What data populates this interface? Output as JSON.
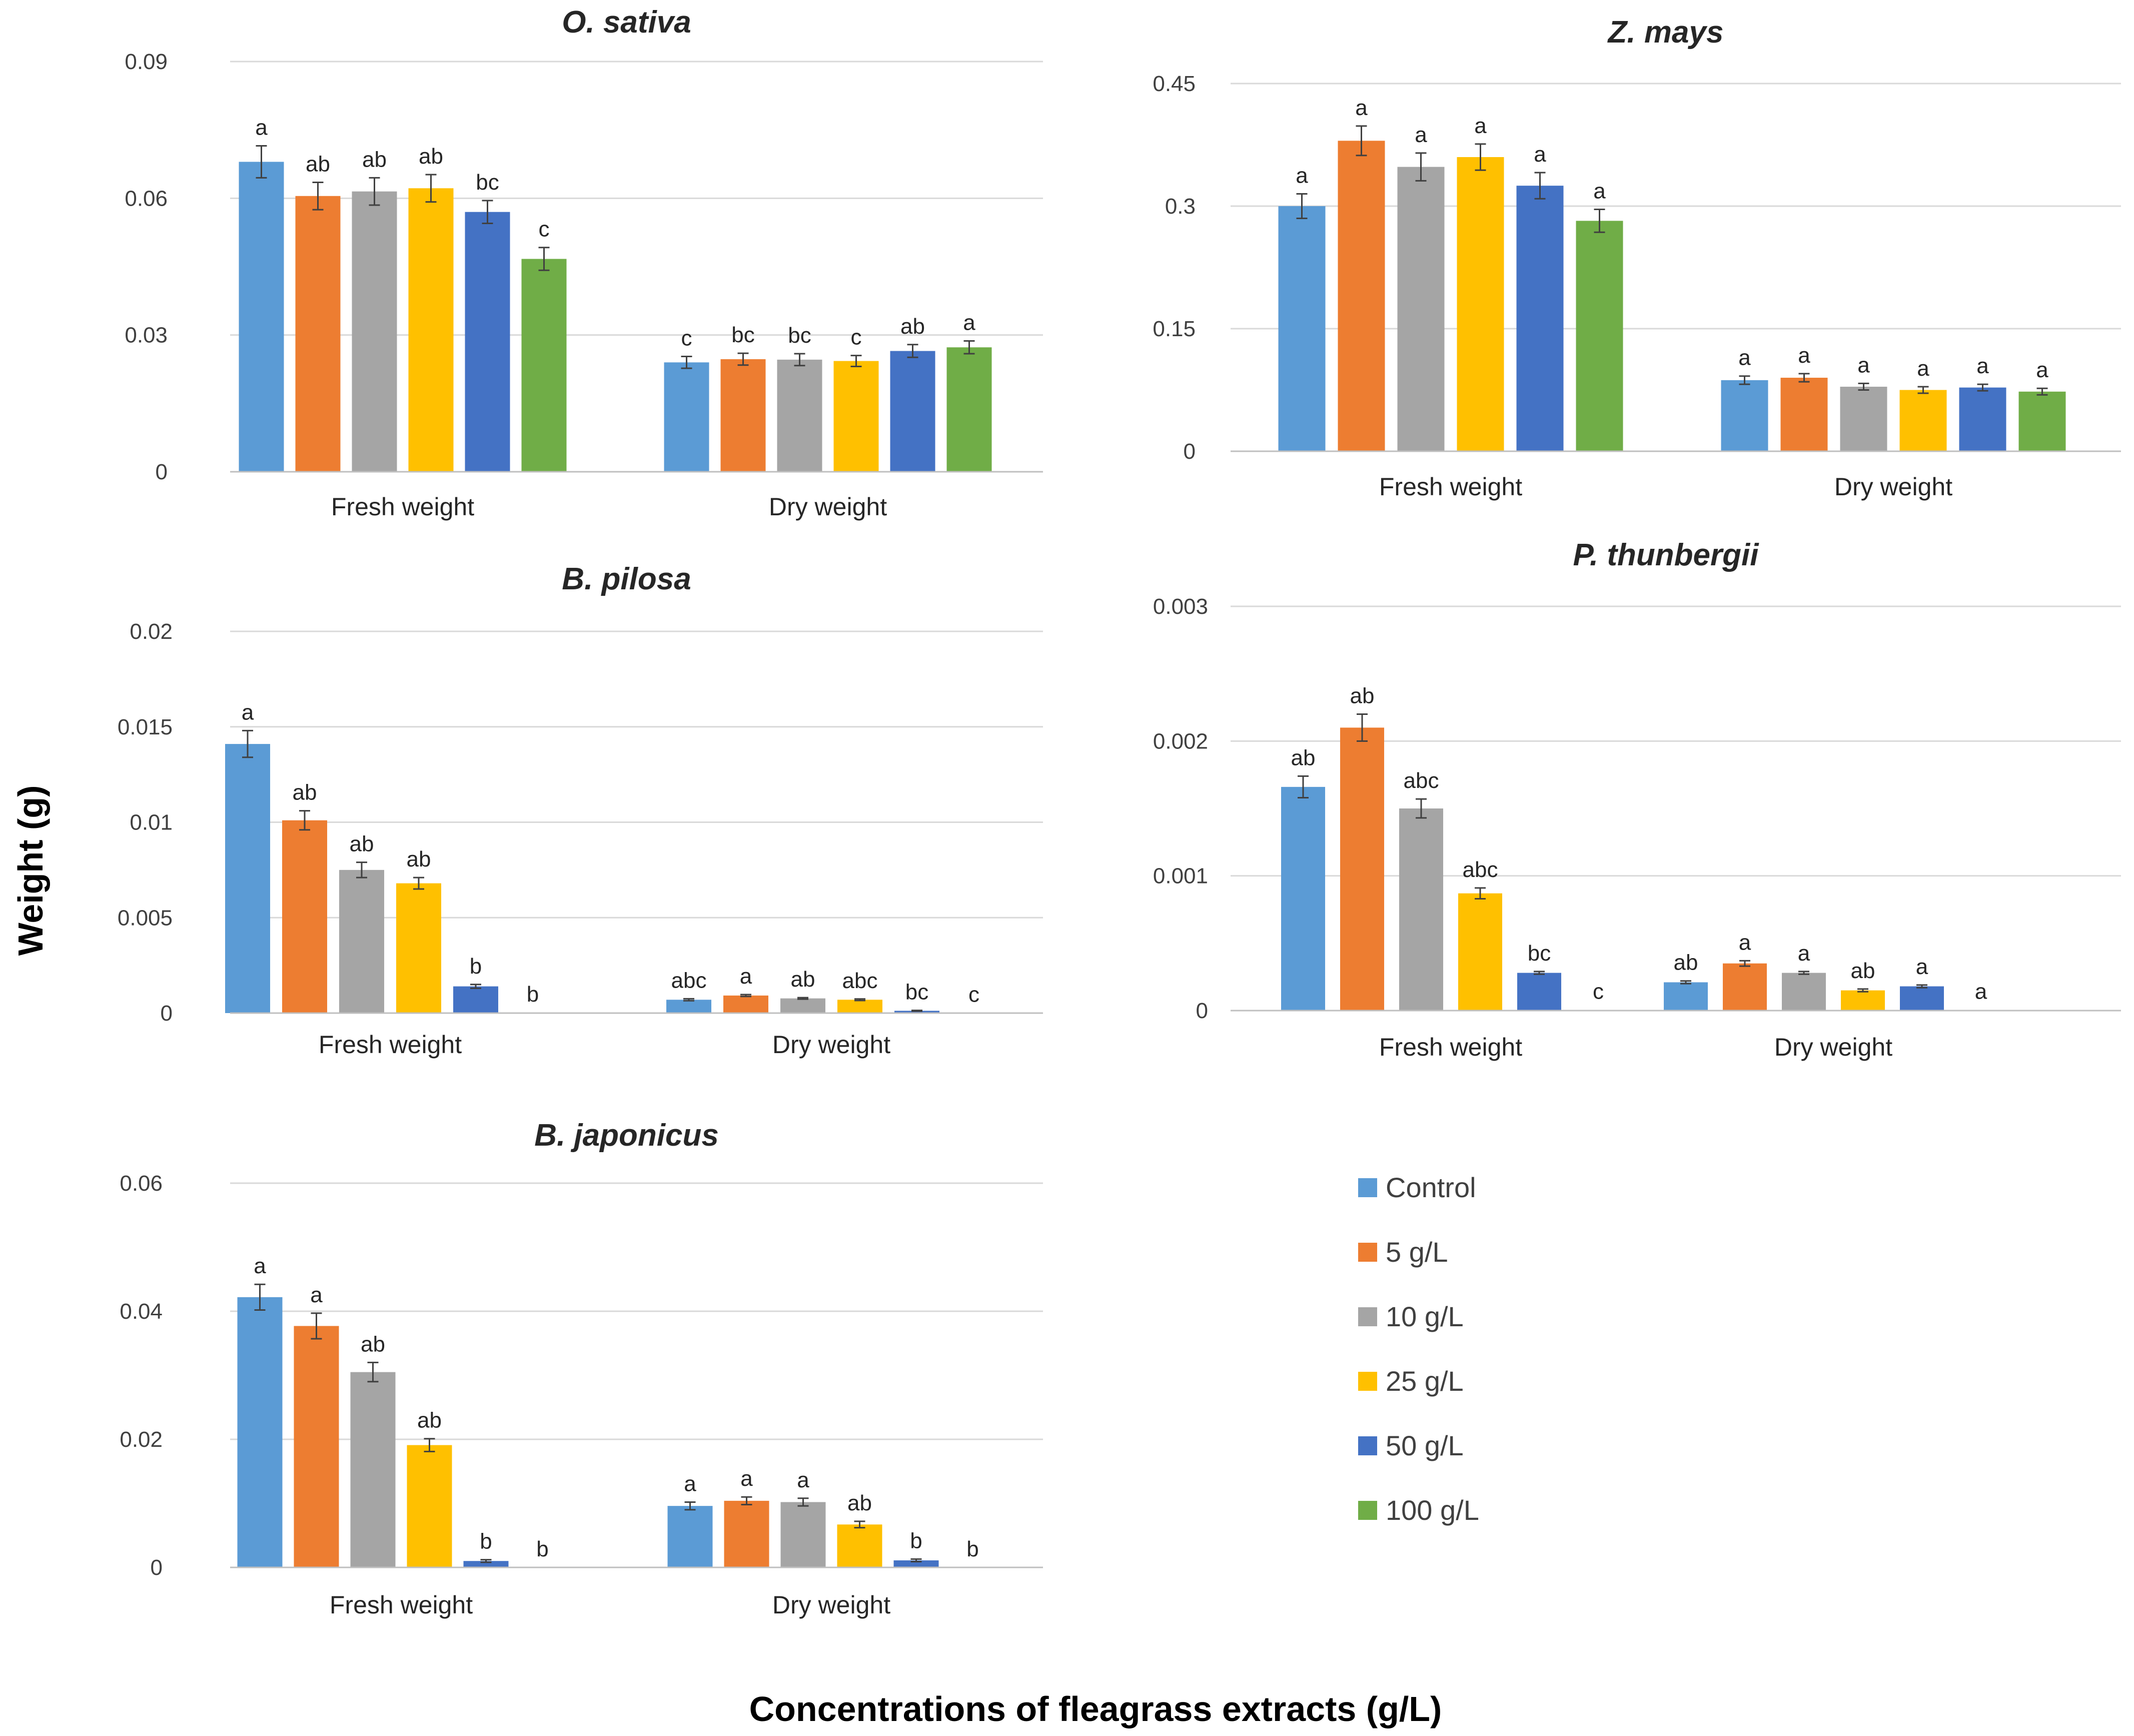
{
  "figure": {
    "ylabel": "Weight (g)",
    "xlabel": "Concentrations of fleagrass extracts (g/L)"
  },
  "legend": [
    {
      "label": "Control",
      "color": "#5B9BD5"
    },
    {
      "label": "5 g/L",
      "color": "#ED7D31"
    },
    {
      "label": "10 g/L",
      "color": "#A5A5A5"
    },
    {
      "label": "25 g/L",
      "color": "#FFC000"
    },
    {
      "label": "50 g/L",
      "color": "#4472C4"
    },
    {
      "label": "100 g/L",
      "color": "#70AD47"
    }
  ],
  "chart_data": [
    {
      "type": "bar",
      "title": "O. sativa",
      "categories": [
        "Fresh weight",
        "Dry weight"
      ],
      "ylim": [
        0,
        0.09
      ],
      "yticks": [
        "0",
        "0.03",
        "0.06",
        "0.09"
      ],
      "series": [
        {
          "name": "Control",
          "values": [
            0.068,
            0.024
          ],
          "errors": [
            0.0035,
            0.0013
          ],
          "letters": [
            "a",
            "c"
          ]
        },
        {
          "name": "5 g/L",
          "values": [
            0.0605,
            0.0247
          ],
          "errors": [
            0.003,
            0.0013
          ],
          "letters": [
            "ab",
            "bc"
          ]
        },
        {
          "name": "10 g/L",
          "values": [
            0.0615,
            0.0246
          ],
          "errors": [
            0.003,
            0.0013
          ],
          "letters": [
            "ab",
            "bc"
          ]
        },
        {
          "name": "25 g/L",
          "values": [
            0.0622,
            0.0243
          ],
          "errors": [
            0.003,
            0.0012
          ],
          "letters": [
            "ab",
            "c"
          ]
        },
        {
          "name": "50 g/L",
          "values": [
            0.057,
            0.0265
          ],
          "errors": [
            0.0025,
            0.0014
          ],
          "letters": [
            "bc",
            "ab"
          ]
        },
        {
          "name": "100 g/L",
          "values": [
            0.0467,
            0.0273
          ],
          "errors": [
            0.0025,
            0.0014
          ],
          "letters": [
            "c",
            "a"
          ]
        }
      ]
    },
    {
      "type": "bar",
      "title": "Z. mays",
      "categories": [
        "Fresh weight",
        "Dry weight"
      ],
      "ylim": [
        0,
        0.45
      ],
      "yticks": [
        "0",
        "0.15",
        "0.3",
        "0.45"
      ],
      "series": [
        {
          "name": "Control",
          "values": [
            0.3,
            0.087
          ],
          "errors": [
            0.015,
            0.005
          ],
          "letters": [
            "a",
            "a"
          ]
        },
        {
          "name": "5 g/L",
          "values": [
            0.38,
            0.09
          ],
          "errors": [
            0.018,
            0.005
          ],
          "letters": [
            "a",
            "a"
          ]
        },
        {
          "name": "10 g/L",
          "values": [
            0.348,
            0.079
          ],
          "errors": [
            0.017,
            0.004
          ],
          "letters": [
            "a",
            "a"
          ]
        },
        {
          "name": "25 g/L",
          "values": [
            0.36,
            0.075
          ],
          "errors": [
            0.016,
            0.004
          ],
          "letters": [
            "a",
            "a"
          ]
        },
        {
          "name": "50 g/L",
          "values": [
            0.325,
            0.078
          ],
          "errors": [
            0.016,
            0.004
          ],
          "letters": [
            "a",
            "a"
          ]
        },
        {
          "name": "100 g/L",
          "values": [
            0.282,
            0.073
          ],
          "errors": [
            0.014,
            0.004
          ],
          "letters": [
            "a",
            "a"
          ]
        }
      ]
    },
    {
      "type": "bar",
      "title": "B. pilosa",
      "categories": [
        "Fresh weight",
        "Dry weight"
      ],
      "ylim": [
        0,
        0.02
      ],
      "yticks": [
        "0",
        "0.005",
        "0.01",
        "0.015",
        "0.02"
      ],
      "series": [
        {
          "name": "Control",
          "values": [
            0.0141,
            0.0007
          ],
          "errors": [
            0.0007,
            5e-05
          ],
          "letters": [
            "a",
            "abc"
          ]
        },
        {
          "name": "5 g/L",
          "values": [
            0.0101,
            0.00092
          ],
          "errors": [
            0.0005,
            5e-05
          ],
          "letters": [
            "ab",
            "a"
          ]
        },
        {
          "name": "10 g/L",
          "values": [
            0.0075,
            0.00077
          ],
          "errors": [
            0.0004,
            4e-05
          ],
          "letters": [
            "ab",
            "ab"
          ]
        },
        {
          "name": "25 g/L",
          "values": [
            0.0068,
            0.0007
          ],
          "errors": [
            0.0003,
            4e-05
          ],
          "letters": [
            "ab",
            "abc"
          ]
        },
        {
          "name": "50 g/L",
          "values": [
            0.0014,
            0.00012
          ],
          "errors": [
            0.0001,
            2e-05
          ],
          "letters": [
            "b",
            "bc"
          ]
        },
        {
          "name": "100 g/L",
          "values": [
            2e-05,
            1e-05
          ],
          "errors": [
            0,
            0
          ],
          "letters": [
            "b",
            "c"
          ]
        }
      ]
    },
    {
      "type": "bar",
      "title": "P. thunbergii",
      "categories": [
        "Fresh weight",
        "Dry weight"
      ],
      "ylim": [
        0,
        0.003
      ],
      "yticks": [
        "0",
        "0.001",
        "0.002",
        "0.003"
      ],
      "series": [
        {
          "name": "Control",
          "values": [
            0.00166,
            0.00021
          ],
          "errors": [
            8e-05,
            1e-05
          ],
          "letters": [
            "ab",
            "ab"
          ]
        },
        {
          "name": "5 g/L",
          "values": [
            0.0021,
            0.00035
          ],
          "errors": [
            0.0001,
            2e-05
          ],
          "letters": [
            "ab",
            "a"
          ]
        },
        {
          "name": "10 g/L",
          "values": [
            0.0015,
            0.00028
          ],
          "errors": [
            7e-05,
            1e-05
          ],
          "letters": [
            "abc",
            "a"
          ]
        },
        {
          "name": "25 g/L",
          "values": [
            0.00087,
            0.00015
          ],
          "errors": [
            4e-05,
            1e-05
          ],
          "letters": [
            "abc",
            "ab"
          ]
        },
        {
          "name": "50 g/L",
          "values": [
            0.00028,
            0.00018
          ],
          "errors": [
            1e-05,
            1e-05
          ],
          "letters": [
            "bc",
            "a"
          ]
        },
        {
          "name": "100 g/L",
          "values": [
            5e-06,
            5e-06
          ],
          "errors": [
            0,
            0
          ],
          "letters": [
            "c",
            "a"
          ]
        }
      ]
    },
    {
      "type": "bar",
      "title": "B. japonicus",
      "categories": [
        "Fresh weight",
        "Dry weight"
      ],
      "ylim": [
        0,
        0.06
      ],
      "yticks": [
        "0",
        "0.02",
        "0.04",
        "0.06"
      ],
      "series": [
        {
          "name": "Control",
          "values": [
            0.0422,
            0.0096
          ],
          "errors": [
            0.002,
            0.0006
          ],
          "letters": [
            "a",
            "a"
          ]
        },
        {
          "name": "5 g/L",
          "values": [
            0.0377,
            0.0104
          ],
          "errors": [
            0.002,
            0.0006
          ],
          "letters": [
            "a",
            "a"
          ]
        },
        {
          "name": "10 g/L",
          "values": [
            0.0305,
            0.0102
          ],
          "errors": [
            0.0015,
            0.0006
          ],
          "letters": [
            "ab",
            "a"
          ]
        },
        {
          "name": "25 g/L",
          "values": [
            0.0191,
            0.0067
          ],
          "errors": [
            0.001,
            0.0005
          ],
          "letters": [
            "ab",
            "ab"
          ]
        },
        {
          "name": "50 g/L",
          "values": [
            0.001,
            0.0011
          ],
          "errors": [
            0.0002,
            0.0002
          ],
          "letters": [
            "b",
            "b"
          ]
        },
        {
          "name": "100 g/L",
          "values": [
            0,
            0
          ],
          "errors": [
            0,
            0
          ],
          "letters": [
            "b",
            "b"
          ]
        }
      ]
    }
  ]
}
